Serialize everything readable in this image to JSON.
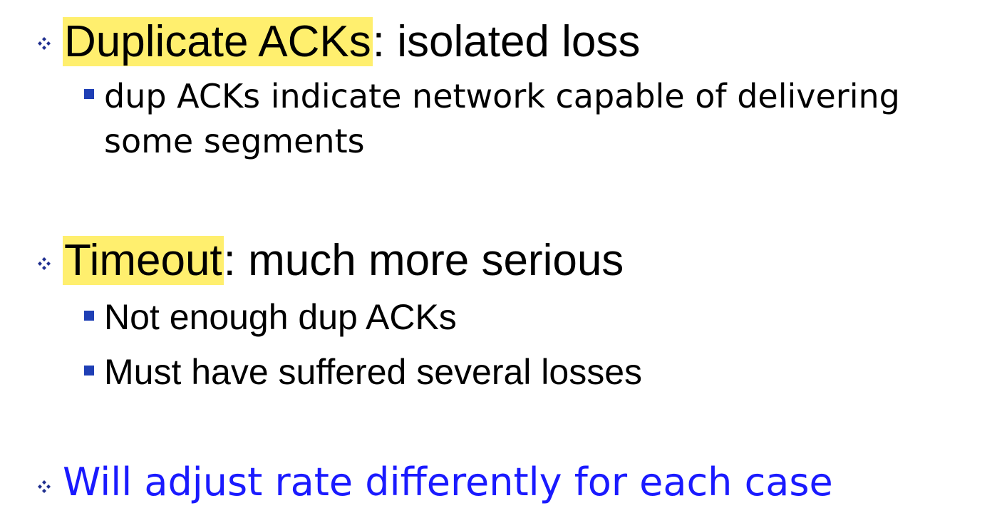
{
  "slide": {
    "bullets": [
      {
        "highlight": "Duplicate ACKs",
        "rest": ": isolated loss",
        "sub": [
          {
            "line1": "dup ACKs indicate network capable of delivering",
            "line2": "some segments"
          }
        ]
      },
      {
        "highlight": "Timeout",
        "rest": ": much more serious",
        "sub": [
          {
            "text": "Not enough dup ACKs"
          },
          {
            "text": "Must have suffered several losses"
          }
        ]
      },
      {
        "text": "Will adjust rate differently for each case"
      }
    ]
  },
  "colors": {
    "highlight": "#ffef6e",
    "bullet_diamond": "#1f2f8f",
    "bullet_square": "#1f3fb5",
    "emphasis_text": "#1a1aff",
    "text": "#000000"
  },
  "icons": {
    "level1_bullet": "diamond-cluster-icon",
    "level2_bullet": "square-bullet-icon"
  }
}
